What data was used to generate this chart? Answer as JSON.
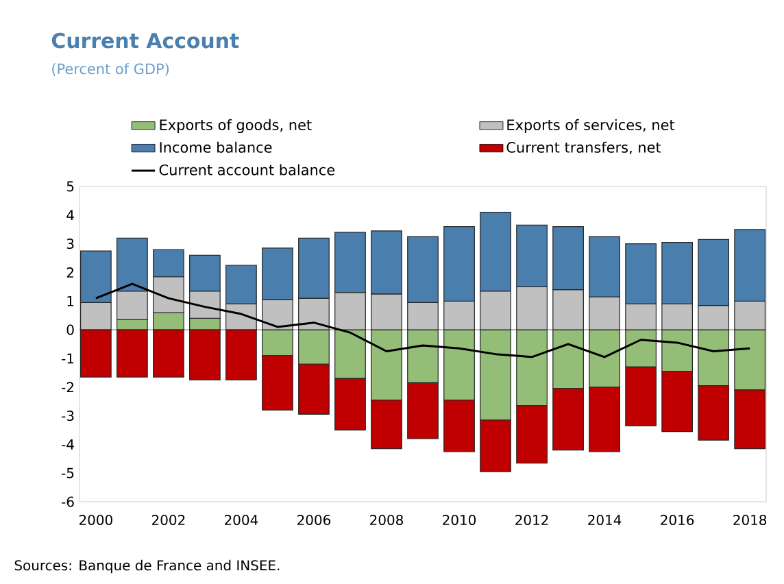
{
  "chart_data": {
    "type": "bar",
    "title": "Current Account",
    "subtitle": "(Percent of GDP)",
    "stacked": true,
    "x": [
      2000,
      2001,
      2002,
      2003,
      2004,
      2005,
      2006,
      2007,
      2008,
      2009,
      2010,
      2011,
      2012,
      2013,
      2014,
      2015,
      2016,
      2017,
      2018
    ],
    "series": [
      {
        "name": "Exports of goods, net",
        "color": "#94bd77",
        "values": [
          0,
          0.35,
          0.6,
          0.4,
          0,
          -0.9,
          -1.2,
          -1.7,
          -2.45,
          -1.85,
          -2.45,
          -3.15,
          -2.65,
          -2.05,
          -2,
          -1.3,
          -1.45,
          -1.95,
          -2.1
        ]
      },
      {
        "name": "Exports of services, net",
        "color": "#c0c0c0",
        "values": [
          0.95,
          1,
          1.25,
          0.95,
          0.9,
          1.05,
          1.1,
          1.3,
          1.25,
          0.95,
          1,
          1.35,
          1.5,
          1.4,
          1.15,
          0.9,
          0.9,
          0.85,
          1
        ]
      },
      {
        "name": "Income balance",
        "color": "#4a7eac",
        "values": [
          1.8,
          1.85,
          0.95,
          1.25,
          1.35,
          1.8,
          2.1,
          2.1,
          2.2,
          2.3,
          2.6,
          2.75,
          2.15,
          2.2,
          2.1,
          2.1,
          2.15,
          2.3,
          2.5
        ]
      },
      {
        "name": "Current transfers, net",
        "color": "#c00000",
        "values": [
          -1.65,
          -1.65,
          -1.65,
          -1.75,
          -1.75,
          -1.9,
          -1.75,
          -1.8,
          -1.7,
          -1.95,
          -1.8,
          -1.8,
          -2,
          -2.15,
          -2.25,
          -2.05,
          -2.1,
          -1.9,
          -2.05
        ]
      },
      {
        "name": "Current account balance",
        "type": "line",
        "color": "#000000",
        "values": [
          1.1,
          1.6,
          1.1,
          0.8,
          0.55,
          0.1,
          0.25,
          -0.1,
          -0.75,
          -0.55,
          -0.65,
          -0.85,
          -0.95,
          -0.5,
          -0.95,
          -0.35,
          -0.45,
          -0.75,
          -0.65
        ]
      }
    ],
    "xlim": [
      1999.55,
      2018.45
    ],
    "xticks": [
      2000,
      2002,
      2004,
      2006,
      2008,
      2010,
      2012,
      2014,
      2016,
      2018
    ],
    "ylim": [
      -6,
      5
    ],
    "yticks": [
      -6,
      -5,
      -4,
      -3,
      -2,
      -1,
      0,
      1,
      2,
      3,
      4,
      5
    ],
    "legend": "top",
    "annotations": [
      "Sources: Banque de France and INSEE."
    ]
  }
}
